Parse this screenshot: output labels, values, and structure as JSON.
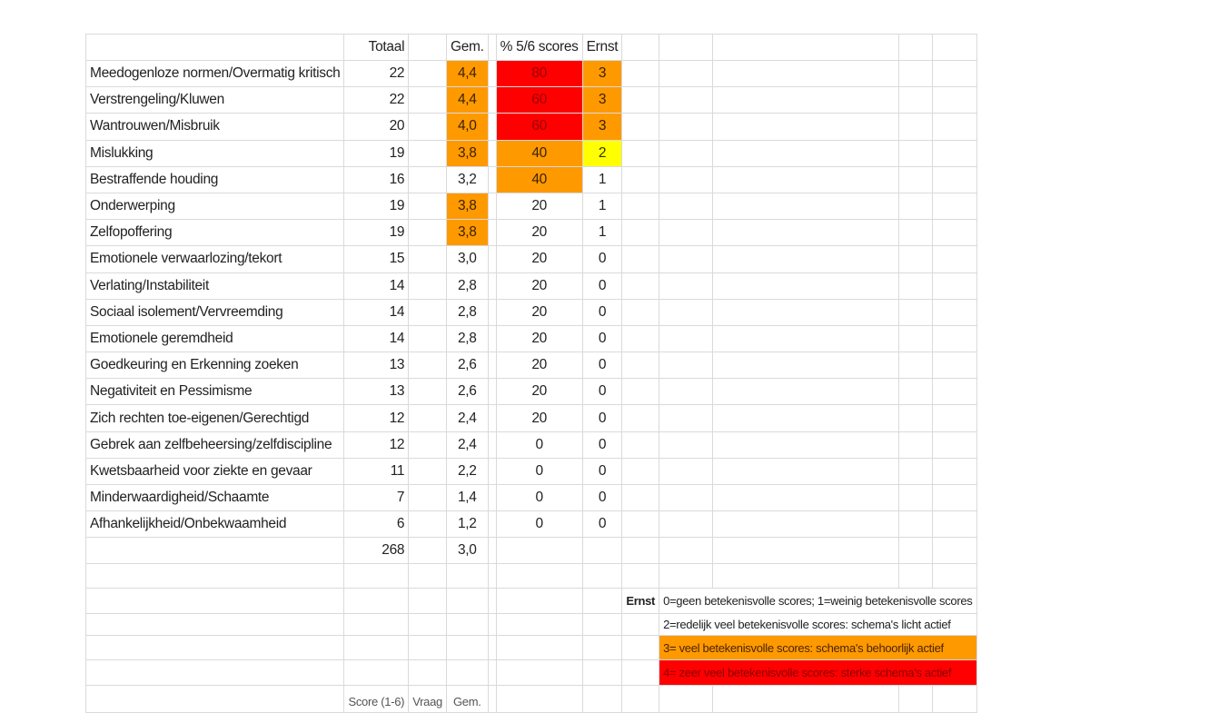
{
  "header": {
    "label": "",
    "totaal": "Totaal",
    "gem": "Gem.",
    "pct": "% 5/6 scores",
    "ernst": "Ernst"
  },
  "colors": {
    "orange": "#ff9900",
    "red": "#ff0000",
    "yellow": "#ffff00",
    "gridline": "#dadada"
  },
  "rows": [
    {
      "label": "Meedogenloze normen/Overmatig kritisch",
      "totaal": "22",
      "gem": "4,4",
      "pct": "80",
      "ernst": "3"
    },
    {
      "label": "Verstrengeling/Kluwen",
      "totaal": "22",
      "gem": "4,4",
      "pct": "60",
      "ernst": "3"
    },
    {
      "label": "Wantrouwen/Misbruik",
      "totaal": "20",
      "gem": "4,0",
      "pct": "60",
      "ernst": "3"
    },
    {
      "label": "Mislukking",
      "totaal": "19",
      "gem": "3,8",
      "pct": "40",
      "ernst": "2"
    },
    {
      "label": "Bestraffende houding",
      "totaal": "16",
      "gem": "3,2",
      "pct": "40",
      "ernst": "1"
    },
    {
      "label": "Onderwerping",
      "totaal": "19",
      "gem": "3,8",
      "pct": "20",
      "ernst": "1"
    },
    {
      "label": "Zelfopoffering",
      "totaal": "19",
      "gem": "3,8",
      "pct": "20",
      "ernst": "1"
    },
    {
      "label": "Emotionele verwaarlozing/tekort",
      "totaal": "15",
      "gem": "3,0",
      "pct": "20",
      "ernst": "0"
    },
    {
      "label": "Verlating/Instabiliteit",
      "totaal": "14",
      "gem": "2,8",
      "pct": "20",
      "ernst": "0"
    },
    {
      "label": "Sociaal isolement/Vervreemding",
      "totaal": "14",
      "gem": "2,8",
      "pct": "20",
      "ernst": "0"
    },
    {
      "label": "Emotionele geremdheid",
      "totaal": "14",
      "gem": "2,8",
      "pct": "20",
      "ernst": "0"
    },
    {
      "label": "Goedkeuring en Erkenning zoeken",
      "totaal": "13",
      "gem": "2,6",
      "pct": "20",
      "ernst": "0"
    },
    {
      "label": "Negativiteit en Pessimisme",
      "totaal": "13",
      "gem": "2,6",
      "pct": "20",
      "ernst": "0"
    },
    {
      "label": "Zich rechten toe-eigenen/Gerechtigd",
      "totaal": "12",
      "gem": "2,4",
      "pct": "20",
      "ernst": "0"
    },
    {
      "label": "Gebrek aan zelfbeheersing/zelfdiscipline",
      "totaal": "12",
      "gem": "2,4",
      "pct": "0",
      "ernst": "0"
    },
    {
      "label": "Kwetsbaarheid voor ziekte en gevaar",
      "totaal": "11",
      "gem": "2,2",
      "pct": "0",
      "ernst": "0"
    },
    {
      "label": "Minderwaardigheid/Schaamte",
      "totaal": "7",
      "gem": "1,4",
      "pct": "0",
      "ernst": "0"
    },
    {
      "label": "Afhankelijkheid/Onbekwaamheid",
      "totaal": "6",
      "gem": "1,2",
      "pct": "0",
      "ernst": "0"
    }
  ],
  "totals": {
    "totaal": "268",
    "gem": "3,0"
  },
  "legend": {
    "title": "Ernst",
    "lines": [
      "0=geen betekenisvolle scores; 1=weinig betekenisvolle scores",
      "2=redelijk veel betekenisvolle scores: schema's licht actief",
      "3= veel betekenisvolle scores: schema's behoorlijk actief",
      "4= zeer veel betekenisvolle scores: sterke schema's actief"
    ]
  },
  "partial_row": {
    "score": "Score (1-6)",
    "vraag": "Vraag",
    "gem": "Gem."
  }
}
